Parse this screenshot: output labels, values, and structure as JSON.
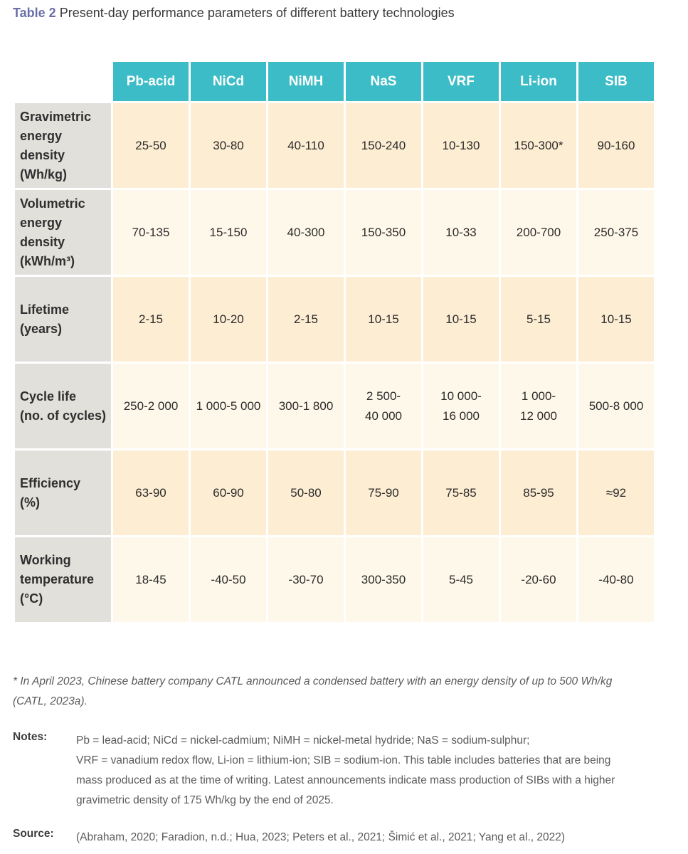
{
  "caption": {
    "label": "Table 2",
    "title": "Present-day performance parameters of different battery technologies"
  },
  "table": {
    "columns": [
      "Pb-acid",
      "NiCd",
      "NiMH",
      "NaS",
      "VRF",
      "Li-ion",
      "SIB"
    ],
    "rows": [
      {
        "label": [
          "Gravimetric",
          "energy",
          "density",
          "(Wh/kg)"
        ],
        "values": [
          [
            "25-50"
          ],
          [
            "30-80"
          ],
          [
            "40-110"
          ],
          [
            "150-240"
          ],
          [
            "10-130"
          ],
          [
            "150-300*"
          ],
          [
            "90-160"
          ]
        ]
      },
      {
        "label": [
          "Volumetric",
          "energy",
          "density",
          "(kWh/m³)"
        ],
        "values": [
          [
            "70-135"
          ],
          [
            "15-150"
          ],
          [
            "40-300"
          ],
          [
            "150-350"
          ],
          [
            "10-33"
          ],
          [
            "200-700"
          ],
          [
            "250-375"
          ]
        ]
      },
      {
        "label": [
          "Lifetime",
          "(years)"
        ],
        "values": [
          [
            "2-15"
          ],
          [
            "10-20"
          ],
          [
            "2-15"
          ],
          [
            "10-15"
          ],
          [
            "10-15"
          ],
          [
            "5-15"
          ],
          [
            "10-15"
          ]
        ]
      },
      {
        "label": [
          "Cycle life",
          "(no. of cycles)"
        ],
        "values": [
          [
            "250-2 000"
          ],
          [
            "1 000-5 000"
          ],
          [
            "300-1 800"
          ],
          [
            "2 500-",
            "40 000"
          ],
          [
            "10 000-",
            "16 000"
          ],
          [
            "1 000-",
            "12 000"
          ],
          [
            "500-8 000"
          ]
        ]
      },
      {
        "label": [
          "Efficiency",
          "(%)"
        ],
        "values": [
          [
            "63-90"
          ],
          [
            "60-90"
          ],
          [
            "50-80"
          ],
          [
            "75-90"
          ],
          [
            "75-85"
          ],
          [
            "85-95"
          ],
          [
            "≈92"
          ]
        ]
      },
      {
        "label": [
          "Working",
          "temperature",
          "(°C)"
        ],
        "values": [
          [
            "18-45"
          ],
          [
            "-40-50"
          ],
          [
            "-30-70"
          ],
          [
            "300-350"
          ],
          [
            "5-45"
          ],
          [
            "-20-60"
          ],
          [
            "-40-80"
          ]
        ]
      }
    ]
  },
  "footnote": {
    "lines": [
      "* In April 2023, Chinese battery company CATL announced a condensed battery with an energy density of up to 500 Wh/kg",
      "(CATL, 2023a)."
    ]
  },
  "notes": {
    "label": "Notes:",
    "lines": [
      "Pb = lead-acid; NiCd = nickel-cadmium; NiMH = nickel-metal hydride; NaS = sodium-sulphur;",
      "VRF = vanadium redox flow, Li-ion = lithium-ion; SIB = sodium-ion. This table includes batteries that are being",
      "mass produced as at the time of writing. Latest announcements indicate mass production of SIBs with a higher",
      "gravimetric density of 175 Wh/kg by the end of 2025."
    ]
  },
  "source": {
    "label": "Source:",
    "text": "(Abraham, 2020; Faradion, n.d.; Hua, 2023; Peters et al., 2021; Šimić et al., 2021; Yang et al., 2022)"
  }
}
